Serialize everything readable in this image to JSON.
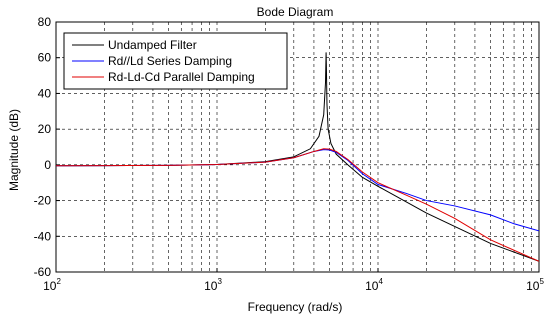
{
  "chart_data": {
    "type": "line",
    "title": "Bode Diagram",
    "xlabel": "Frequency  (rad/s)",
    "ylabel": "Magnitude (dB)",
    "xscale": "log",
    "xlim": [
      100,
      100000
    ],
    "ylim": [
      -60,
      80
    ],
    "grid": true,
    "legend_position": "top-left",
    "x_ticks": [
      {
        "base": "10",
        "exp": "2",
        "value": 100
      },
      {
        "base": "10",
        "exp": "3",
        "value": 1000
      },
      {
        "base": "10",
        "exp": "4",
        "value": 10000
      },
      {
        "base": "10",
        "exp": "5",
        "value": 100000
      }
    ],
    "y_ticks": [
      -60,
      -40,
      -20,
      0,
      20,
      40,
      60,
      80
    ],
    "series": [
      {
        "name": "Undamped Filter",
        "color": "#000000",
        "points": [
          [
            100,
            -0.5
          ],
          [
            200,
            -0.4
          ],
          [
            500,
            -0.3
          ],
          [
            1000,
            0.2
          ],
          [
            2000,
            1.8
          ],
          [
            3000,
            4.5
          ],
          [
            3800,
            9
          ],
          [
            4300,
            16
          ],
          [
            4600,
            28
          ],
          [
            4720,
            46
          ],
          [
            4760,
            63
          ],
          [
            4780,
            55
          ],
          [
            4820,
            34
          ],
          [
            4900,
            20
          ],
          [
            5100,
            12
          ],
          [
            5500,
            6
          ],
          [
            6500,
            0
          ],
          [
            8000,
            -7
          ],
          [
            10000,
            -12
          ],
          [
            20000,
            -27
          ],
          [
            50000,
            -44
          ],
          [
            100000,
            -54
          ]
        ]
      },
      {
        "name": "Rd//Ld Series Damping",
        "color": "#0000ff",
        "points": [
          [
            100,
            -0.5
          ],
          [
            200,
            -0.4
          ],
          [
            500,
            -0.3
          ],
          [
            1000,
            0.2
          ],
          [
            2000,
            1.5
          ],
          [
            3000,
            4
          ],
          [
            4000,
            7.5
          ],
          [
            4600,
            8.5
          ],
          [
            5000,
            8.3
          ],
          [
            5500,
            7
          ],
          [
            6500,
            2.5
          ],
          [
            8000,
            -5
          ],
          [
            10000,
            -11
          ],
          [
            15000,
            -16
          ],
          [
            20000,
            -20
          ],
          [
            30000,
            -23
          ],
          [
            50000,
            -28
          ],
          [
            70000,
            -33
          ],
          [
            100000,
            -37
          ]
        ]
      },
      {
        "name": "Rd-Ld-Cd Parallel Damping",
        "color": "#e00000",
        "points": [
          [
            100,
            -0.5
          ],
          [
            200,
            -0.4
          ],
          [
            500,
            -0.3
          ],
          [
            1000,
            0.2
          ],
          [
            2000,
            1.5
          ],
          [
            3000,
            4
          ],
          [
            4000,
            7.5
          ],
          [
            4600,
            9
          ],
          [
            5000,
            8.8
          ],
          [
            5500,
            7.5
          ],
          [
            6500,
            3
          ],
          [
            8000,
            -4
          ],
          [
            10000,
            -10
          ],
          [
            15000,
            -17
          ],
          [
            20000,
            -22
          ],
          [
            30000,
            -30
          ],
          [
            50000,
            -42
          ],
          [
            100000,
            -54
          ]
        ]
      }
    ]
  }
}
